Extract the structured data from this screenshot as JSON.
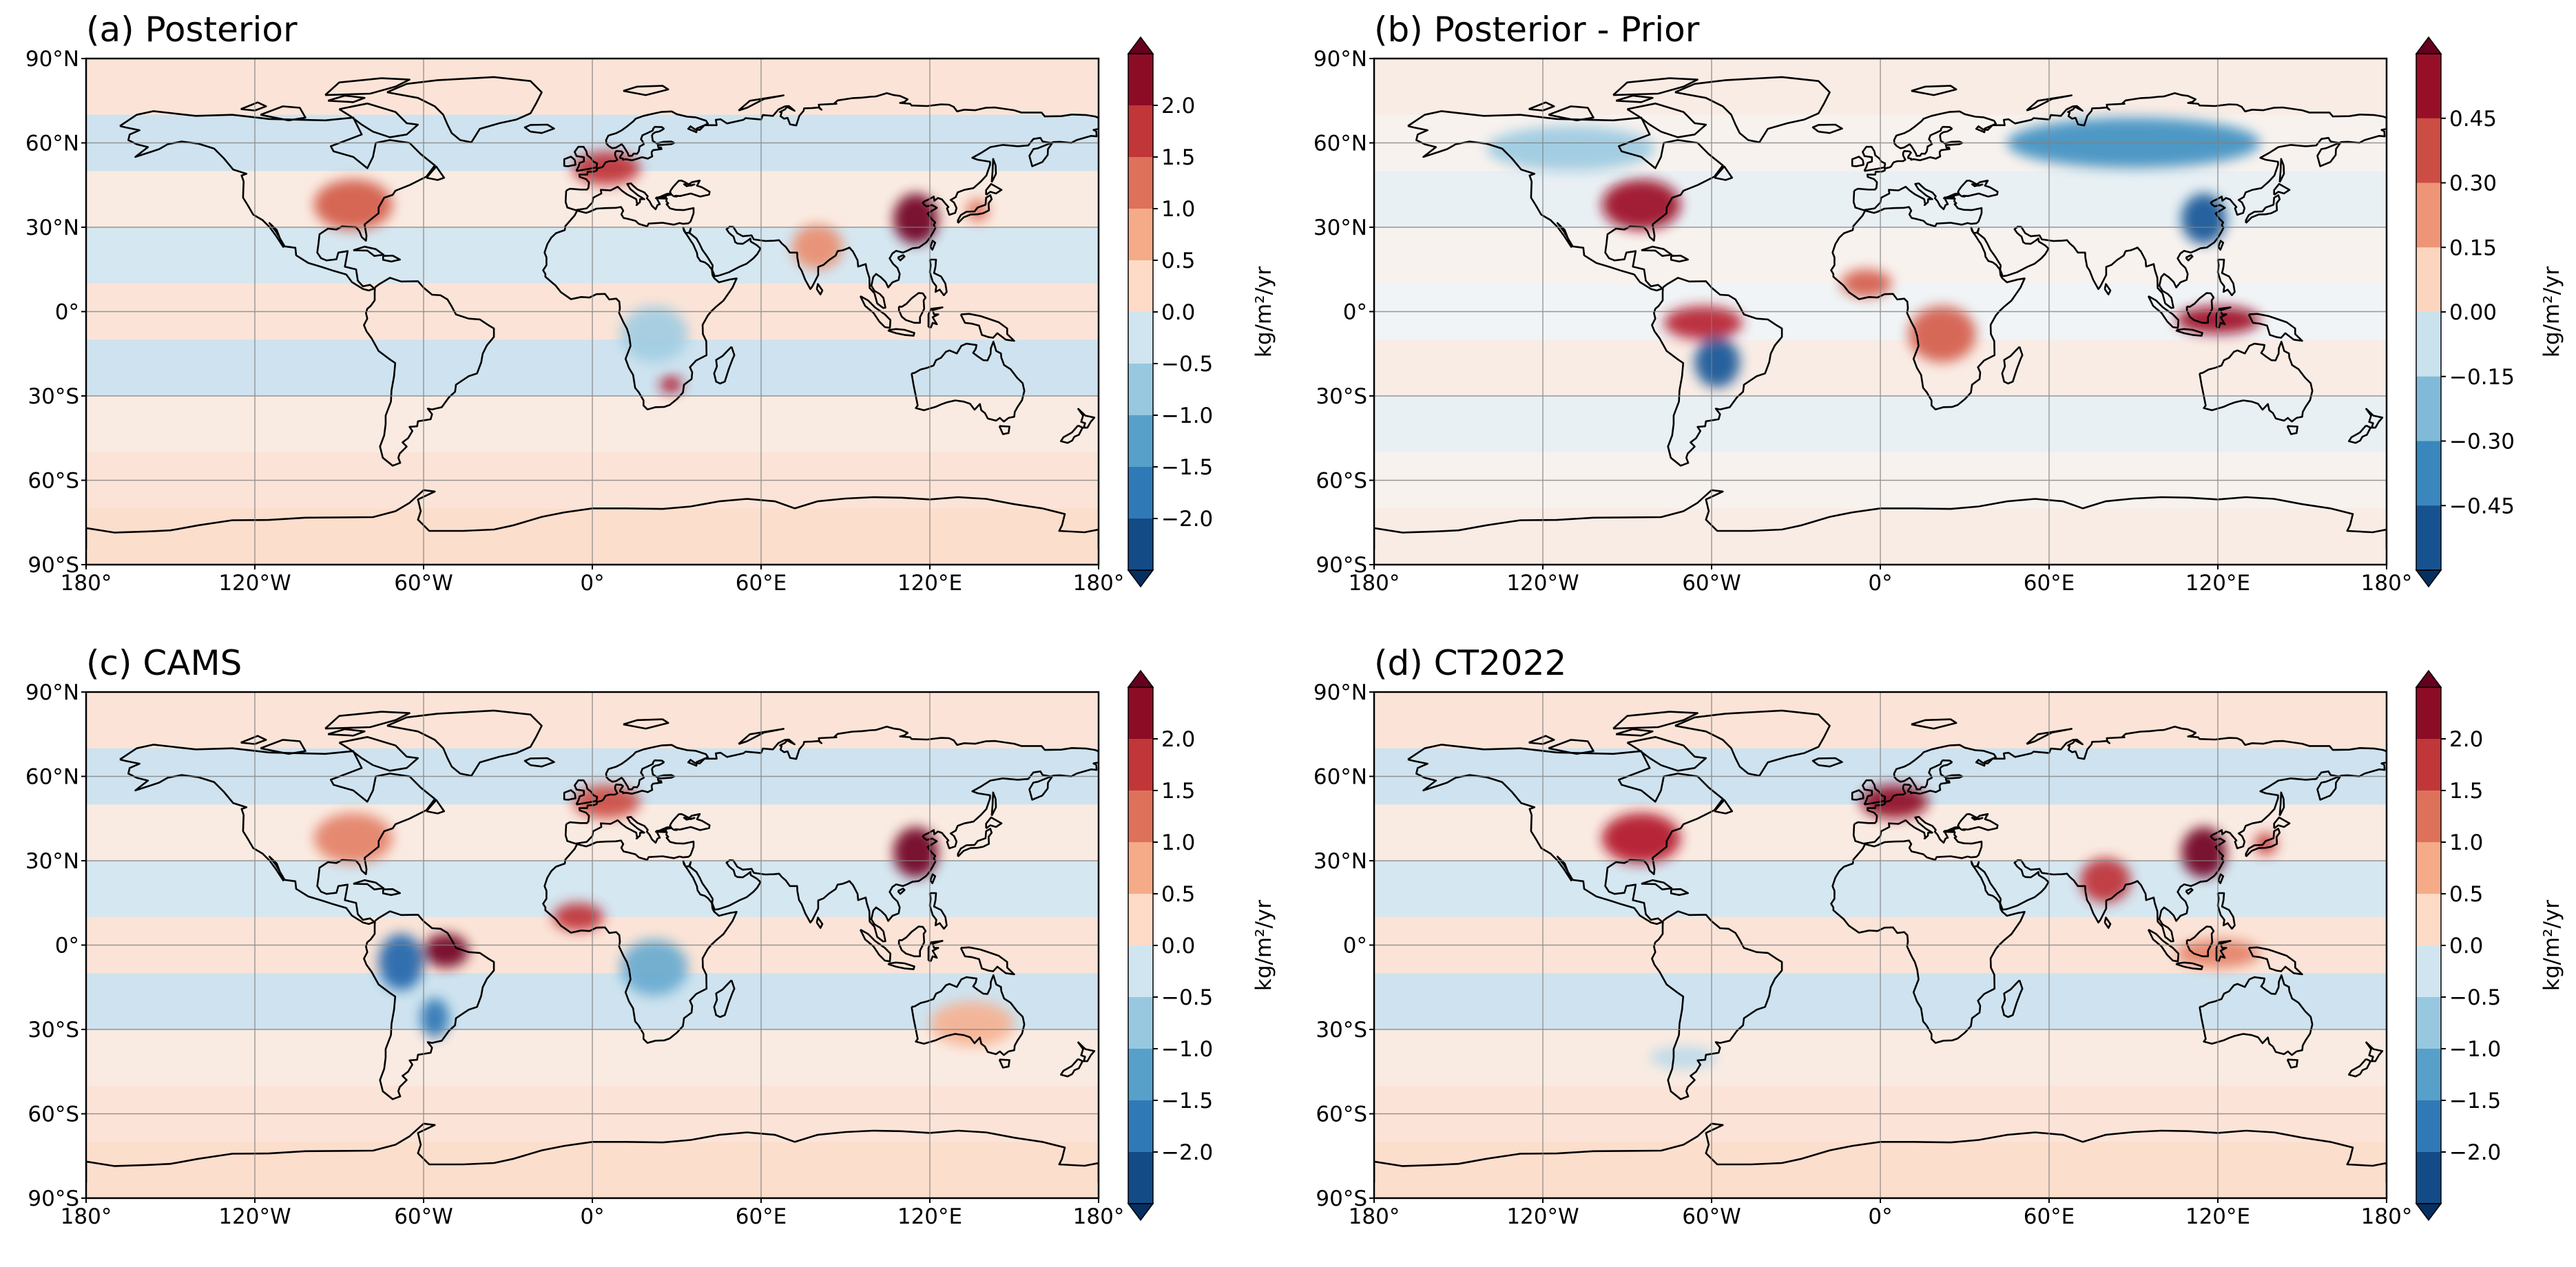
{
  "figure": {
    "panels": [
      {
        "id": "a",
        "title": "(a) Posterior",
        "colorbar": {
          "unit": "kg/m²/yr",
          "ticks": [
            "2.0",
            "1.5",
            "1.0",
            "0.5",
            "0.0",
            "−0.5",
            "−1.0",
            "−1.5",
            "−2.0"
          ],
          "range": [
            -2.25,
            2.25
          ]
        },
        "regions": [
          {
            "name": "eastern-us",
            "value": 1.3
          },
          {
            "name": "europe",
            "value": 1.6
          },
          {
            "name": "east-china",
            "value": 2.2
          },
          {
            "name": "india",
            "value": 0.9
          },
          {
            "name": "japan",
            "value": 1.1
          },
          {
            "name": "south-africa",
            "value": 1.8
          },
          {
            "name": "central-africa",
            "value": -0.6
          }
        ]
      },
      {
        "id": "b",
        "title": "(b) Posterior - Prior",
        "colorbar": {
          "unit": "kg/m²/yr",
          "ticks": [
            "0.45",
            "0.30",
            "0.15",
            "0.00",
            "−0.15",
            "−0.30",
            "−0.45"
          ],
          "range": [
            -0.525,
            0.525
          ]
        },
        "regions": [
          {
            "name": "canada-boreal",
            "value": -0.15
          },
          {
            "name": "siberia",
            "value": -0.3
          },
          {
            "name": "east-china",
            "value": -0.45
          },
          {
            "name": "eastern-us",
            "value": 0.45
          },
          {
            "name": "amazon",
            "value": 0.4
          },
          {
            "name": "central-south-america",
            "value": -0.45
          },
          {
            "name": "central-africa",
            "value": 0.3
          },
          {
            "name": "indonesia",
            "value": 0.45
          },
          {
            "name": "west-africa",
            "value": 0.3
          }
        ]
      },
      {
        "id": "c",
        "title": "(c) CAMS",
        "colorbar": {
          "unit": "kg/m²/yr",
          "ticks": [
            "2.0",
            "1.5",
            "1.0",
            "0.5",
            "0.0",
            "−0.5",
            "−1.0",
            "−1.5",
            "−2.0"
          ],
          "range": [
            -2.25,
            2.25
          ]
        },
        "regions": [
          {
            "name": "western-amazon",
            "value": -1.8
          },
          {
            "name": "eastern-amazon",
            "value": 2.2
          },
          {
            "name": "southern-brazil",
            "value": -1.6
          },
          {
            "name": "west-africa",
            "value": 1.6
          },
          {
            "name": "central-africa",
            "value": -1.0
          },
          {
            "name": "east-china",
            "value": 2.2
          },
          {
            "name": "europe",
            "value": 1.4
          },
          {
            "name": "eastern-us",
            "value": 1.0
          },
          {
            "name": "australia",
            "value": 0.6
          }
        ]
      },
      {
        "id": "d",
        "title": "(d) CT2022",
        "colorbar": {
          "unit": "kg/m²/yr",
          "ticks": [
            "2.0",
            "1.5",
            "1.0",
            "0.5",
            "0.0",
            "−0.5",
            "−1.0",
            "−1.5",
            "−2.0"
          ],
          "range": [
            -2.25,
            2.25
          ]
        },
        "regions": [
          {
            "name": "eastern-us",
            "value": 1.8
          },
          {
            "name": "europe",
            "value": 2.0
          },
          {
            "name": "east-china",
            "value": 2.2
          },
          {
            "name": "india",
            "value": 1.6
          },
          {
            "name": "japan",
            "value": 1.5
          },
          {
            "name": "indonesia",
            "value": 1.0
          },
          {
            "name": "southern-ocean",
            "value": -0.4
          }
        ]
      }
    ],
    "x_ticks": [
      "180°",
      "120°W",
      "60°W",
      "0°",
      "60°E",
      "120°E",
      "180°"
    ],
    "y_ticks": [
      "90°N",
      "60°N",
      "30°N",
      "0°",
      "30°S",
      "60°S",
      "90°S"
    ]
  }
}
